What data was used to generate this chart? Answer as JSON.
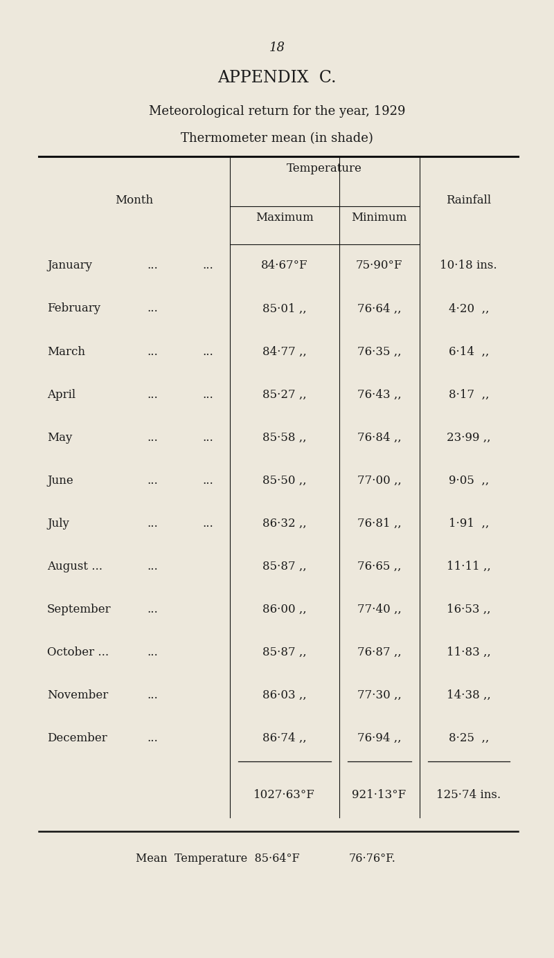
{
  "page_number": "18",
  "title1": "APPENDIX  C.",
  "title2": "Meteorological return for the year, 1929",
  "title3": "Thermometer mean (in shade)",
  "bg_color": "#EDE8DC",
  "text_color": "#1a1a1a",
  "col_header_temp": "Temperature",
  "col_header_month": "Month",
  "col_header_max": "Maximum",
  "col_header_min": "Minimum",
  "col_header_rain": "Rainfall",
  "actual_months": [
    [
      "January",
      "...",
      "..."
    ],
    [
      "February",
      "...",
      ""
    ],
    [
      "March",
      "...",
      "..."
    ],
    [
      "April",
      "...",
      "..."
    ],
    [
      "May",
      "...",
      "..."
    ],
    [
      "June",
      "...",
      "..."
    ],
    [
      "July",
      "...",
      "..."
    ],
    [
      "August ...",
      "...",
      ""
    ],
    [
      "September",
      "...",
      ""
    ],
    [
      "October ...",
      "...",
      ""
    ],
    [
      "November",
      "...",
      ""
    ],
    [
      "December",
      "...",
      ""
    ]
  ],
  "max_temp": [
    "84·67°F",
    "85·01 ,,",
    "84·77 ,,",
    "85·27 ,,",
    "85·58 ,,",
    "85·50 ,,",
    "86·32 ,,",
    "85·87 ,,",
    "86·00 ,,",
    "85·87 ,,",
    "86·03 ,,",
    "86·74 ,,"
  ],
  "min_temp": [
    "75·90°F",
    "76·64 ,,",
    "76·35 ,,",
    "76·43 ,,",
    "76·84 ,,",
    "77·00 ,,",
    "76·81 ,,",
    "76·65 ,,",
    "77·40 ,,",
    "76·87 ,,",
    "77·30 ,,",
    "76·94 ,,"
  ],
  "rainfall": [
    "10·18 ins.",
    "4·20  ,,",
    "6·14  ,,",
    "8·17  ,,",
    "23·99 ,,",
    "9·05  ,,",
    "1·91  ,,",
    "11·11 ,,",
    "16·53 ,,",
    "11·83 ,,",
    "14·38 ,,",
    "8·25  ,,"
  ],
  "total_max": "1027·63°F",
  "total_min": "921·13°F",
  "total_rain": "125·74 ins.",
  "mean_text1": "Mean  Temperature  85·64°F",
  "mean_text2": "76·76°F."
}
